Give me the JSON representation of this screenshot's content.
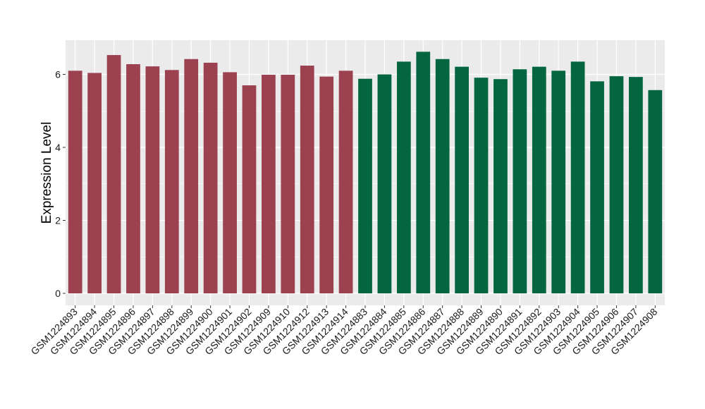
{
  "chart_data": {
    "type": "bar",
    "title": "",
    "xlabel": "",
    "ylabel": "Expression Level",
    "ylim": [
      0,
      6.92
    ],
    "yticks": [
      0,
      2,
      4,
      6
    ],
    "grid": true,
    "legend": "none",
    "categories": [
      "GSM1224893",
      "GSM1224894",
      "GSM1224895",
      "GSM1224896",
      "GSM1224897",
      "GSM1224898",
      "GSM1224899",
      "GSM1224900",
      "GSM1224901",
      "GSM1224902",
      "GSM1224909",
      "GSM1224910",
      "GSM1224912",
      "GSM1224913",
      "GSM1224914",
      "GSM1224883",
      "GSM1224884",
      "GSM1224885",
      "GSM1224886",
      "GSM1224887",
      "GSM1224888",
      "GSM1224889",
      "GSM1224890",
      "GSM1224891",
      "GSM1224892",
      "GSM1224903",
      "GSM1224904",
      "GSM1224905",
      "GSM1224906",
      "GSM1224907",
      "GSM1224908"
    ],
    "values": [
      6.1,
      6.04,
      6.53,
      6.28,
      6.22,
      6.12,
      6.42,
      6.32,
      6.06,
      5.7,
      5.99,
      5.99,
      6.24,
      5.94,
      6.1,
      5.88,
      6.0,
      6.35,
      6.62,
      6.42,
      6.21,
      5.91,
      5.87,
      6.14,
      6.21,
      6.1,
      6.35,
      5.81,
      5.95,
      5.93,
      5.57
    ],
    "groups": [
      {
        "color": "#9b414f",
        "count": 15
      },
      {
        "color": "#036641",
        "count": 16
      }
    ],
    "colors": {
      "panel_background": "#ebebeb",
      "gridline": "#ffffff",
      "tick_color": "#333333"
    }
  }
}
